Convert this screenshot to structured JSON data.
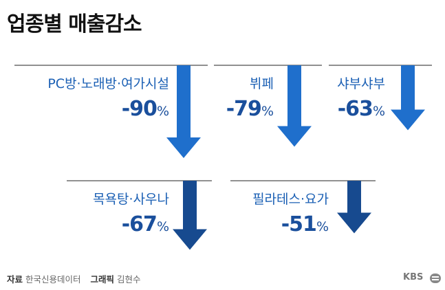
{
  "title": "업종별 매출감소",
  "chart_data": {
    "type": "bar",
    "title": "업종별 매출감소",
    "unit": "%",
    "categories": [
      "PC방·노래방·여가시설",
      "뷔페",
      "샤부샤부",
      "목욕탕·사우나",
      "필라테스·요가"
    ],
    "values": [
      -90,
      -79,
      -63,
      -67,
      -51
    ],
    "value_labels": [
      "-90",
      "-79",
      "-63",
      "-67",
      "-51"
    ],
    "colors": [
      "#1f6fcc",
      "#1f6fcc",
      "#1f6fcc",
      "#174a8f",
      "#174a8f"
    ]
  },
  "source": {
    "label": "자료",
    "value": "한국신용데이터",
    "credit_label": "그래픽",
    "credit_value": "김현수"
  },
  "logo": "KBS"
}
